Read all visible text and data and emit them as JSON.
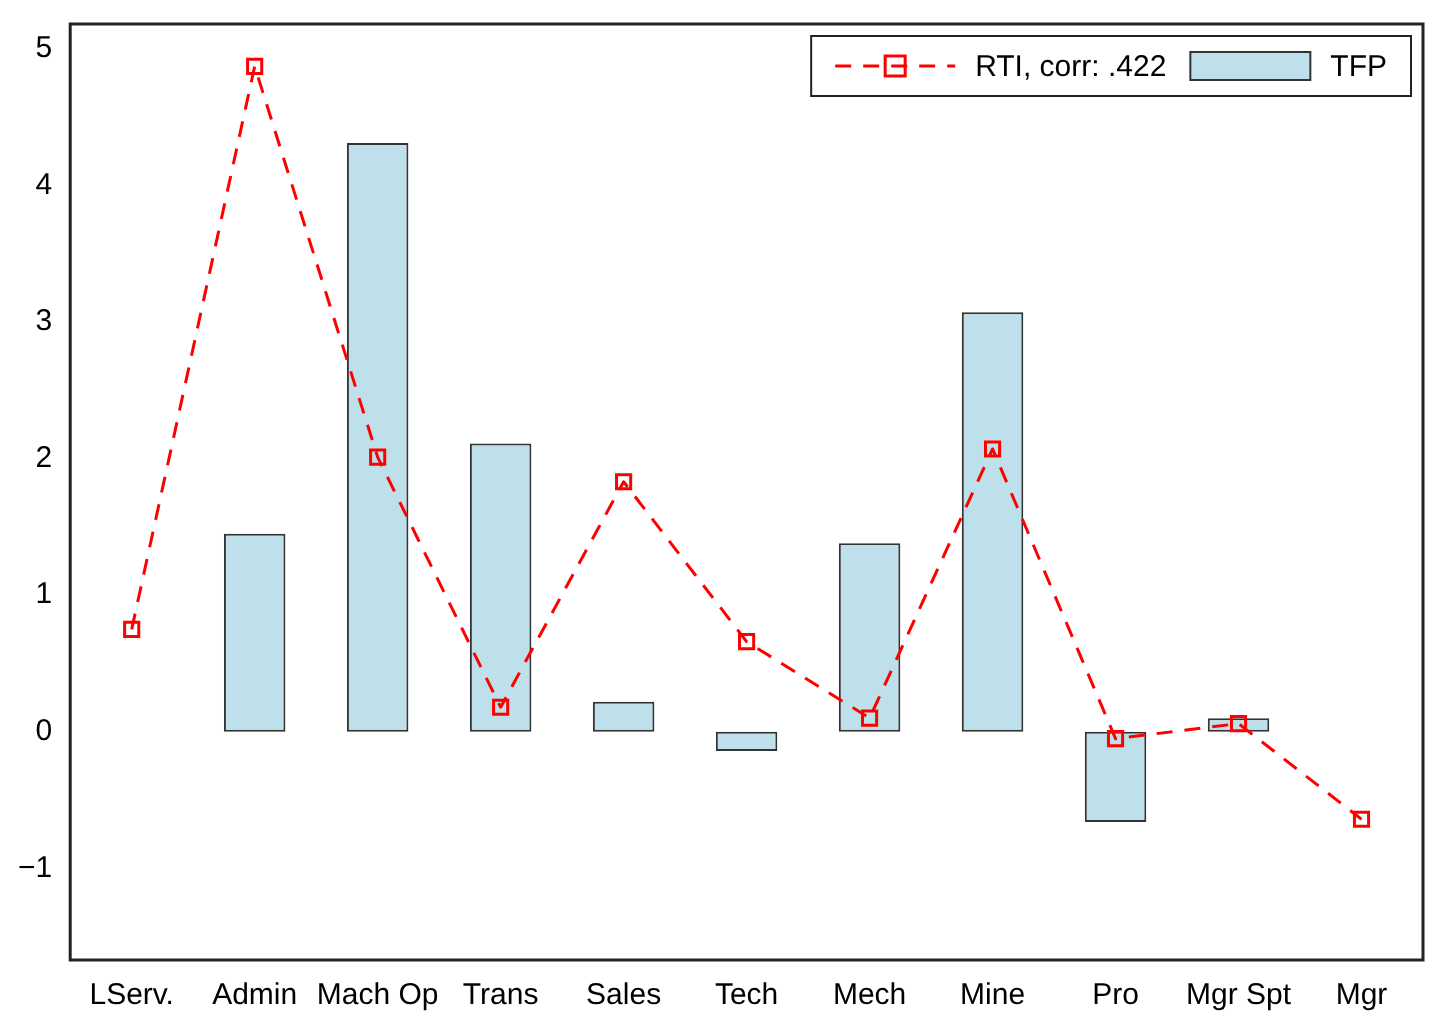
{
  "chart_data": {
    "type": "bar",
    "categories": [
      "LServ.",
      "Admin",
      "Mach Op",
      "Trans",
      "Sales",
      "Tech",
      "Mech",
      "Mine",
      "Pro",
      "Mgr Spt",
      "Mgr"
    ],
    "series": [
      {
        "name": "RTI, corr: .422",
        "type": "line",
        "color": "#ff0000",
        "marker": "square",
        "line_style": "dashed",
        "values": [
          0.75,
          4.87,
          2.01,
          0.18,
          1.83,
          0.66,
          0.1,
          2.07,
          -0.05,
          0.06,
          -0.64
        ]
      },
      {
        "name": "TFP",
        "color": "#bee0ea",
        "values": [
          0,
          1.45,
          4.31,
          2.11,
          0.22,
          -0.14,
          1.38,
          3.07,
          -0.66,
          0.1,
          0
        ]
      }
    ],
    "ylim": [
      -1.67,
      5.18
    ],
    "yticks": [
      -1,
      0,
      1,
      2,
      3,
      4,
      5
    ],
    "grid": false,
    "legend": "top right"
  }
}
